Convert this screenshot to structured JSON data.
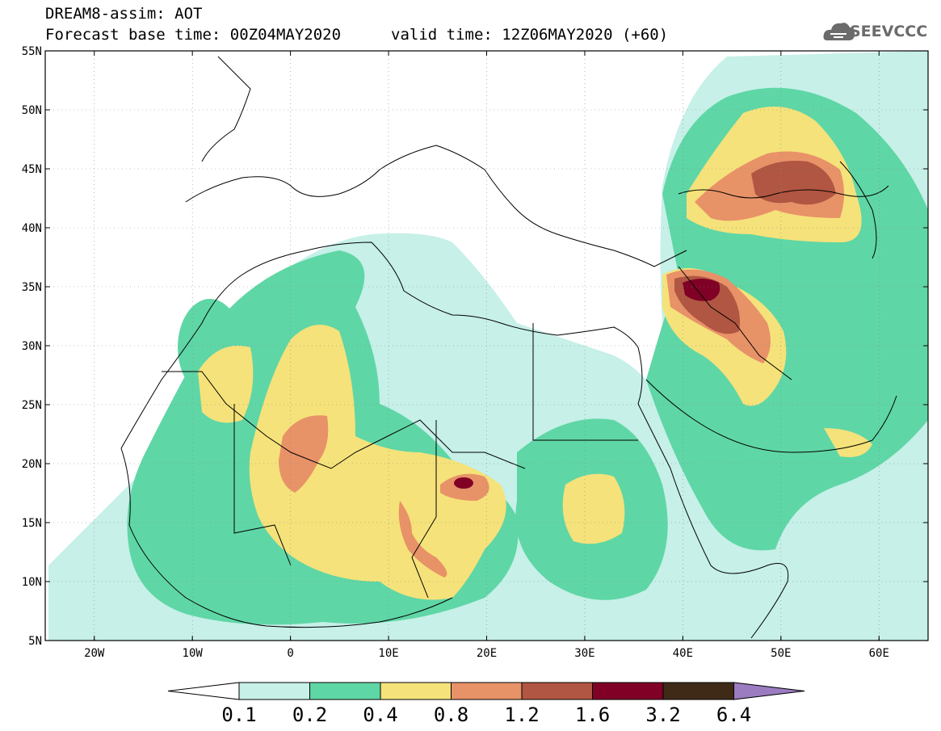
{
  "header": {
    "title": "DREAM8-assim: AOT",
    "base_time": "Forecast base time: 00Z04MAY2020",
    "valid_time": "valid time: 12Z06MAY2020 (+60)",
    "logo_text": "SEEVCCC"
  },
  "map": {
    "lon_range": [
      -25,
      65
    ],
    "lat_range": [
      5,
      55
    ],
    "lat_labels": [
      "55N",
      "50N",
      "45N",
      "40N",
      "35N",
      "30N",
      "25N",
      "20N",
      "15N",
      "10N",
      "5N"
    ],
    "lon_labels": [
      "20W",
      "10W",
      "0",
      "10E",
      "20E",
      "30E",
      "40E",
      "50E",
      "60E"
    ],
    "grid": "dotted"
  },
  "colorbar": {
    "labels": [
      "0.1",
      "0.2",
      "0.4",
      "0.8",
      "1.2",
      "1.6",
      "3.2",
      "6.4"
    ],
    "colors": [
      "#ffffff",
      "#c6f0e8",
      "#5fd6a6",
      "#f5e27a",
      "#e89268",
      "#b15642",
      "#800026",
      "#3f2a18",
      "#9b7cc0"
    ]
  }
}
